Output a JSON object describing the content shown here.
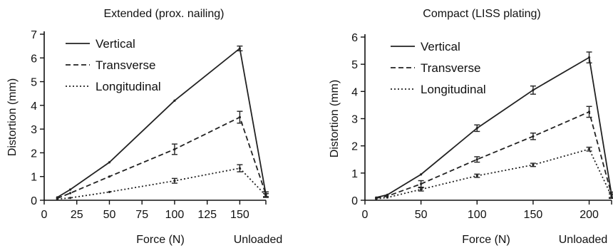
{
  "chart_data": [
    {
      "type": "line",
      "title": "Extended (prox. nailing)",
      "xlabel": "Force (N)",
      "ylabel": "Distortion (mm)",
      "x_ticks": [
        0,
        25,
        50,
        75,
        100,
        125,
        150
      ],
      "y_ticks": [
        0,
        1,
        2,
        3,
        4,
        5,
        6,
        7
      ],
      "unloaded_label": "Unloaded",
      "xlim": [
        0,
        170
      ],
      "ylim": [
        0,
        7
      ],
      "legend_position": "top-left",
      "series": [
        {
          "name": "Vertical",
          "style": "solid",
          "points": [
            [
              10,
              0.12
            ],
            [
              20,
              0.45
            ],
            [
              50,
              1.6
            ],
            [
              100,
              4.2
            ],
            [
              150,
              6.4
            ],
            [
              "Unloaded",
              0.25
            ]
          ],
          "errors": [
            0.02,
            0.03,
            0.04,
            0.05,
            0.1,
            0.1
          ]
        },
        {
          "name": "Transverse",
          "style": "dashed",
          "points": [
            [
              10,
              0.08
            ],
            [
              20,
              0.3
            ],
            [
              50,
              1.0
            ],
            [
              100,
              2.15
            ],
            [
              150,
              3.5
            ],
            [
              "Unloaded",
              0.25
            ]
          ],
          "errors": [
            0.02,
            0.03,
            0.04,
            0.22,
            0.25,
            0.1
          ]
        },
        {
          "name": "Longitudinal",
          "style": "dotted",
          "points": [
            [
              10,
              0.05
            ],
            [
              20,
              0.1
            ],
            [
              50,
              0.35
            ],
            [
              100,
              0.82
            ],
            [
              150,
              1.35
            ],
            [
              "Unloaded",
              0.2
            ]
          ],
          "errors": [
            0.02,
            0.02,
            0.03,
            0.1,
            0.15,
            0.08
          ]
        }
      ]
    },
    {
      "type": "line",
      "title": "Compact (LISS plating)",
      "xlabel": "Force (N)",
      "ylabel": "Distortion (mm)",
      "x_ticks": [
        0,
        50,
        100,
        150,
        200
      ],
      "y_ticks": [
        0,
        1,
        2,
        3,
        4,
        5,
        6
      ],
      "unloaded_label": "Unloaded",
      "xlim": [
        0,
        220
      ],
      "ylim": [
        0,
        6
      ],
      "legend_position": "top-left",
      "series": [
        {
          "name": "Vertical",
          "style": "solid",
          "points": [
            [
              10,
              0.1
            ],
            [
              20,
              0.2
            ],
            [
              50,
              0.95
            ],
            [
              100,
              2.65
            ],
            [
              150,
              4.05
            ],
            [
              200,
              5.25
            ],
            [
              "Unloaded",
              0.2
            ]
          ],
          "errors": [
            0.02,
            0.03,
            0.05,
            0.12,
            0.15,
            0.2,
            0.1
          ]
        },
        {
          "name": "Transverse",
          "style": "dashed",
          "points": [
            [
              10,
              0.08
            ],
            [
              20,
              0.15
            ],
            [
              50,
              0.6
            ],
            [
              100,
              1.5
            ],
            [
              150,
              2.35
            ],
            [
              200,
              3.25
            ],
            [
              "Unloaded",
              0.2
            ]
          ],
          "errors": [
            0.02,
            0.03,
            0.12,
            0.1,
            0.12,
            0.2,
            0.1
          ]
        },
        {
          "name": "Longitudinal",
          "style": "dotted",
          "points": [
            [
              10,
              0.05
            ],
            [
              20,
              0.1
            ],
            [
              50,
              0.4
            ],
            [
              100,
              0.9
            ],
            [
              150,
              1.3
            ],
            [
              200,
              1.88
            ],
            [
              "Unloaded",
              0.15
            ]
          ],
          "errors": [
            0.02,
            0.02,
            0.06,
            0.06,
            0.06,
            0.07,
            0.08
          ]
        }
      ]
    }
  ]
}
